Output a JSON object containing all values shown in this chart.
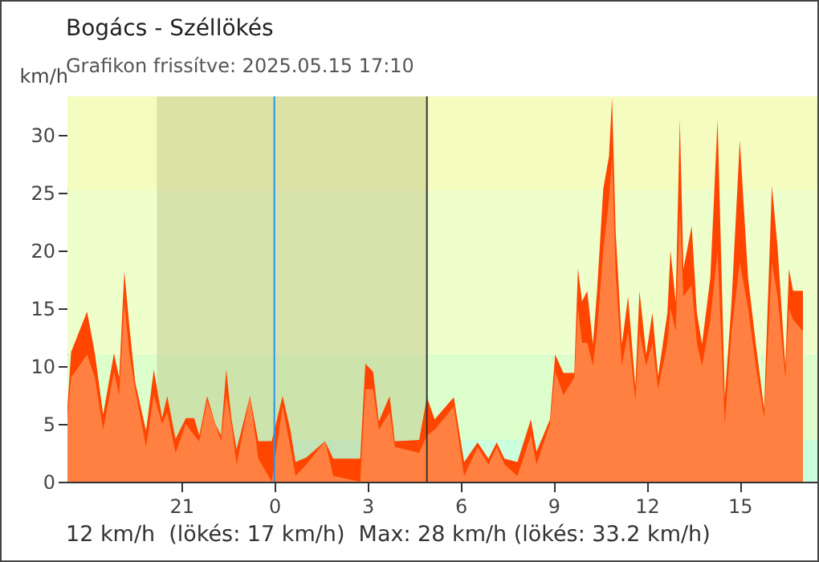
{
  "chart_data": {
    "type": "area",
    "title": "Bogács - Széllökés",
    "subtitle": "Grafikon frissítve: 2025.05.15 17:10",
    "ylabel": "km/h",
    "annotations": [
      "12 km/h  (lökés: 17 km/h)  Max: 28 km/h (lökés: 33.2 km/h)"
    ],
    "x": [
      "2025-05-14T17:20",
      "2025-05-14T17:27",
      "2025-05-14T17:58",
      "2025-05-14T18:13",
      "2025-05-14T18:29",
      "2025-05-14T18:50",
      "2025-05-14T19:00",
      "2025-05-14T19:10",
      "2025-05-14T19:20",
      "2025-05-14T19:31",
      "2025-05-14T19:52",
      "2025-05-14T20:07",
      "2025-05-14T20:23",
      "2025-05-14T20:33",
      "2025-05-14T20:49",
      "2025-05-14T21:09",
      "2025-05-14T21:25",
      "2025-05-14T21:35",
      "2025-05-14T21:50",
      "2025-05-14T22:06",
      "2025-05-14T22:17",
      "2025-05-14T22:27",
      "2025-05-14T22:37",
      "2025-05-14T22:47",
      "2025-05-14T23:13",
      "2025-05-14T23:29",
      "2025-05-14T23:55",
      "2025-05-15T00:16",
      "2025-05-15T00:31",
      "2025-05-15T00:41",
      "2025-05-15T01:02",
      "2025-05-15T01:38",
      "2025-05-15T01:54",
      "2025-05-15T02:46",
      "2025-05-15T02:56",
      "2025-05-15T03:11",
      "2025-05-15T03:22",
      "2025-05-15T03:43",
      "2025-05-15T03:53",
      "2025-05-15T04:40",
      "2025-05-15T04:55",
      "2025-05-15T05:10",
      "2025-05-15T05:47",
      "2025-05-15T06:07",
      "2025-05-15T06:33",
      "2025-05-15T06:54",
      "2025-05-15T07:10",
      "2025-05-15T07:25",
      "2025-05-15T07:50",
      "2025-05-15T08:16",
      "2025-05-15T08:27",
      "2025-05-15T08:53",
      "2025-05-15T09:03",
      "2025-05-15T09:19",
      "2025-05-15T09:40",
      "2025-05-15T09:47",
      "2025-05-15T09:55",
      "2025-05-15T10:05",
      "2025-05-15T10:16",
      "2025-05-15T10:24",
      "2025-05-15T10:36",
      "2025-05-15T10:47",
      "2025-05-15T10:53",
      "2025-05-15T11:00",
      "2025-05-15T11:12",
      "2025-05-15T11:24",
      "2025-05-15T11:38",
      "2025-05-15T11:46",
      "2025-05-15T11:59",
      "2025-05-15T12:11",
      "2025-05-15T12:22",
      "2025-05-15T12:40",
      "2025-05-15T12:46",
      "2025-05-15T12:56",
      "2025-05-15T13:04",
      "2025-05-15T13:11",
      "2025-05-15T13:27",
      "2025-05-15T13:37",
      "2025-05-15T13:47",
      "2025-05-15T14:03",
      "2025-05-15T14:17",
      "2025-05-15T14:31",
      "2025-05-15T14:44",
      "2025-05-15T15:00",
      "2025-05-15T15:16",
      "2025-05-15T15:31",
      "2025-05-15T15:47",
      "2025-05-15T16:02",
      "2025-05-15T16:13",
      "2025-05-15T16:28",
      "2025-05-15T16:35",
      "2025-05-15T16:43",
      "2025-05-15T17:02"
    ],
    "series": [
      {
        "color": "#ff4500",
        "values": [
          6.4,
          11.2,
          14.7,
          11.1,
          5.8,
          11.1,
          9,
          18.2,
          13.3,
          8.6,
          4.4,
          9.7,
          5.5,
          7.4,
          3.7,
          5.5,
          5.5,
          4,
          7.4,
          5,
          4,
          9.7,
          5.5,
          2.8,
          7.4,
          3.5,
          3.5,
          7.4,
          4.5,
          1.7,
          2.1,
          3.5,
          2,
          2,
          10.2,
          9.5,
          5.2,
          7.4,
          3.5,
          3.6,
          7.3,
          5.4,
          7.3,
          1.7,
          3.4,
          2,
          3.4,
          2,
          1.7,
          5.4,
          2.6,
          5.4,
          11,
          9.4,
          9.4,
          18.4,
          15.6,
          16.5,
          11.9,
          16.5,
          25.3,
          28.1,
          33.2,
          21.6,
          11.9,
          16,
          8.2,
          16.5,
          11,
          14.6,
          9.1,
          14.6,
          20,
          15.5,
          31.3,
          18.4,
          22.1,
          14.6,
          11.9,
          17.6,
          31.3,
          7.3,
          15.5,
          29.5,
          17.6,
          11.9,
          6.3,
          25.6,
          20.3,
          10,
          18.4,
          16.5,
          16.5
        ]
      },
      {
        "color": "#ff8040",
        "values": [
          5.5,
          9,
          11,
          9,
          4.5,
          9.5,
          7.5,
          15.5,
          11,
          8,
          3,
          7.5,
          5,
          6,
          2.5,
          5,
          4,
          3.5,
          7,
          5,
          3.5,
          7.5,
          5,
          1.5,
          7.4,
          2,
          0,
          6.5,
          3,
          0.5,
          1.5,
          3.5,
          0.5,
          0,
          8,
          8,
          4.5,
          6,
          3,
          2.5,
          4,
          4.5,
          6.5,
          0.5,
          3,
          1.5,
          3,
          1.5,
          0.5,
          4,
          1.5,
          5,
          9.5,
          7.5,
          9,
          15,
          12,
          12,
          10,
          13,
          20,
          24.4,
          28,
          18,
          10,
          13,
          7,
          13,
          10,
          12,
          8,
          12,
          15,
          13,
          23.5,
          16,
          17,
          12,
          10,
          14,
          20,
          5,
          13,
          19,
          15,
          10,
          5.5,
          19,
          16,
          9,
          15,
          14,
          13
        ]
      }
    ],
    "xlim": [
      "2025-05-14T17:20",
      "2025-05-15T17:30"
    ],
    "xticks": [
      {
        "value": "2025-05-14T21:00",
        "label": "21"
      },
      {
        "value": "2025-05-15T00:00",
        "label": "0"
      },
      {
        "value": "2025-05-15T03:00",
        "label": "3"
      },
      {
        "value": "2025-05-15T06:00",
        "label": "6"
      },
      {
        "value": "2025-05-15T09:00",
        "label": "9"
      },
      {
        "value": "2025-05-15T12:00",
        "label": "12"
      },
      {
        "value": "2025-05-15T15:00",
        "label": "15"
      }
    ],
    "ylim": [
      0,
      33.3
    ],
    "yticks": [
      0,
      5,
      10,
      15,
      20,
      25,
      30
    ],
    "bands": [
      {
        "axis": "y",
        "from": 0,
        "to": 3.6,
        "color": "#ccffdd"
      },
      {
        "axis": "y",
        "from": 3.6,
        "to": 11,
        "color": "#ddffcc"
      },
      {
        "axis": "y",
        "from": 11,
        "to": 25.2,
        "color": "#eeffcc"
      },
      {
        "axis": "y",
        "from": 25.2,
        "to": 33.3,
        "color": "#f5fcc0"
      },
      {
        "axis": "x",
        "from": "2025-05-14T20:13",
        "to": "2025-05-15T04:55",
        "color": "#b0b070"
      }
    ],
    "ref_lines": [
      {
        "axis": "x",
        "value": "2025-05-15T00:00",
        "color": "#2196f3"
      },
      {
        "axis": "x",
        "value": "2025-05-15T04:55",
        "color": "#333333"
      }
    ],
    "grid": false
  }
}
